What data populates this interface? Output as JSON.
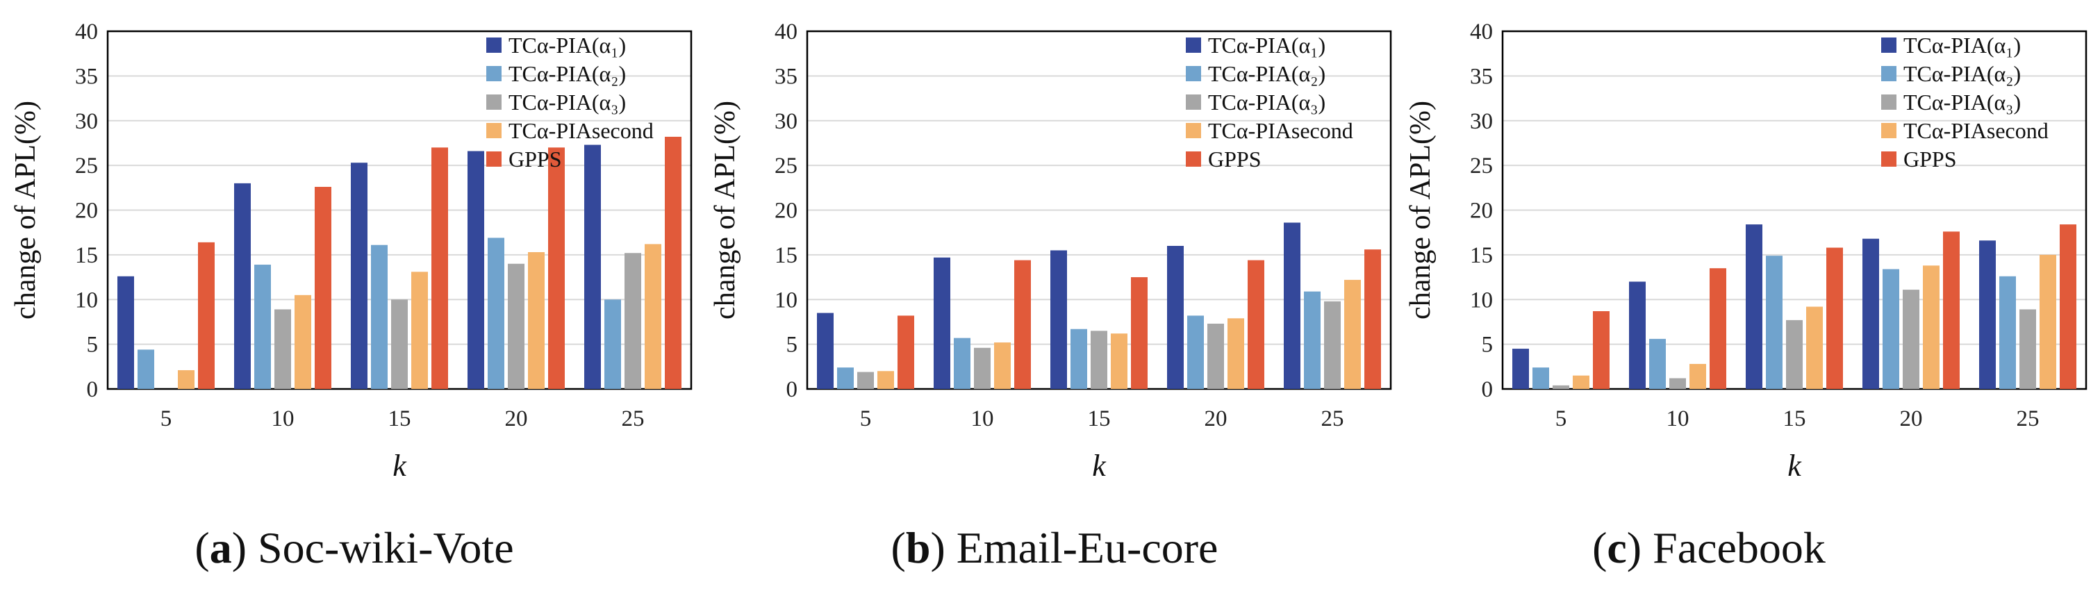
{
  "series_colors": [
    "#34489a",
    "#70a3cd",
    "#a6a6a6",
    "#f4b36b",
    "#e15a3a"
  ],
  "chart_data": [
    {
      "type": "bar",
      "caption_letter": "a",
      "caption_text": "Soc-wiki-Vote",
      "xlabel": "k",
      "ylabel": "change of APL(%)",
      "ylim": [
        0,
        40
      ],
      "yticks": [
        "0",
        "5",
        "10",
        "15",
        "20",
        "25",
        "30",
        "35",
        "40"
      ],
      "categories": [
        "5",
        "10",
        "15",
        "20",
        "25"
      ],
      "legend_position": "top-right",
      "series": [
        {
          "name": "TCα-PIA(α₁)",
          "values": [
            12.6,
            23.0,
            25.3,
            26.6,
            27.3
          ]
        },
        {
          "name": "TCα-PIA(α₂)",
          "values": [
            4.4,
            13.9,
            16.1,
            16.9,
            10.0
          ]
        },
        {
          "name": "TCα-PIA(α₃)",
          "values": [
            0.0,
            8.9,
            10.0,
            14.0,
            15.2
          ]
        },
        {
          "name": "TCα-PIAsecond",
          "values": [
            2.1,
            10.5,
            13.1,
            15.3,
            16.2
          ]
        },
        {
          "name": "GPPS",
          "values": [
            16.4,
            22.6,
            27.0,
            27.0,
            28.2
          ]
        }
      ]
    },
    {
      "type": "bar",
      "caption_letter": "b",
      "caption_text": "Email-Eu-core",
      "xlabel": "k",
      "ylabel": "change of APL(%)",
      "ylim": [
        0,
        40
      ],
      "yticks": [
        "0",
        "5",
        "10",
        "15",
        "20",
        "25",
        "30",
        "35",
        "40"
      ],
      "categories": [
        "5",
        "10",
        "15",
        "20",
        "25"
      ],
      "legend_position": "top-right",
      "series": [
        {
          "name": "TCα-PIA(α₁)",
          "values": [
            8.5,
            14.7,
            15.5,
            16.0,
            18.6
          ]
        },
        {
          "name": "TCα-PIA(α₂)",
          "values": [
            2.4,
            5.7,
            6.7,
            8.2,
            10.9
          ]
        },
        {
          "name": "TCα-PIA(α₃)",
          "values": [
            1.9,
            4.6,
            6.5,
            7.3,
            9.8
          ]
        },
        {
          "name": "TCα-PIAsecond",
          "values": [
            2.0,
            5.2,
            6.2,
            7.9,
            12.2
          ]
        },
        {
          "name": "GPPS",
          "values": [
            8.2,
            14.4,
            12.5,
            14.4,
            15.6
          ]
        }
      ]
    },
    {
      "type": "bar",
      "caption_letter": "c",
      "caption_text": "Facebook",
      "xlabel": "k",
      "ylabel": "change of APL(%)",
      "ylim": [
        0,
        40
      ],
      "yticks": [
        "0",
        "5",
        "10",
        "15",
        "20",
        "25",
        "30",
        "35",
        "40"
      ],
      "categories": [
        "5",
        "10",
        "15",
        "20",
        "25"
      ],
      "legend_position": "top-right",
      "series": [
        {
          "name": "TCα-PIA(α₁)",
          "values": [
            4.5,
            12.0,
            18.4,
            16.8,
            16.6
          ]
        },
        {
          "name": "TCα-PIA(α₂)",
          "values": [
            2.4,
            5.6,
            14.9,
            13.4,
            12.6
          ]
        },
        {
          "name": "TCα-PIA(α₃)",
          "values": [
            0.4,
            1.2,
            7.7,
            11.1,
            8.9
          ]
        },
        {
          "name": "TCα-PIAsecond",
          "values": [
            1.5,
            2.8,
            9.2,
            13.8,
            15.0
          ]
        },
        {
          "name": "GPPS",
          "values": [
            8.7,
            13.5,
            15.8,
            17.6,
            18.4
          ]
        }
      ]
    }
  ]
}
